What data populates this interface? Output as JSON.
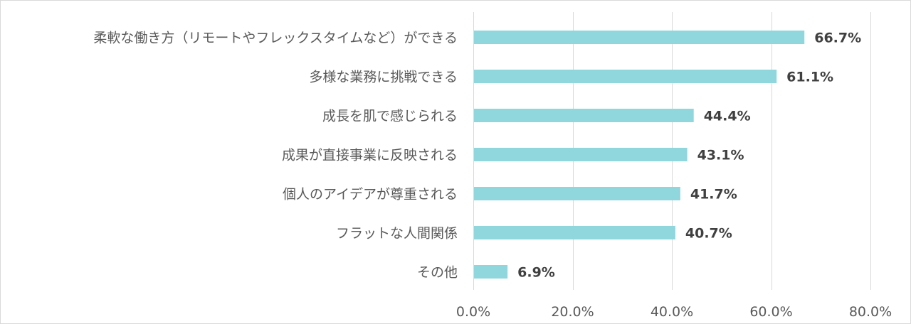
{
  "chart_data": {
    "type": "bar",
    "orientation": "horizontal",
    "categories": [
      "柔軟な働き方（リモートやフレックスタイムなど）ができる",
      "多様な業務に挑戦できる",
      "成長を肌で感じられる",
      "成果が直接事業に反映される",
      "個人のアイデアが尊重される",
      "フラットな人間関係",
      "その他"
    ],
    "values": [
      66.7,
      61.1,
      44.4,
      43.1,
      41.7,
      40.7,
      6.9
    ],
    "value_labels": [
      "66.7%",
      "61.1%",
      "44.4%",
      "43.1%",
      "41.7%",
      "40.7%",
      "6.9%"
    ],
    "xlim": [
      0,
      80
    ],
    "x_ticks": [
      0,
      20,
      40,
      60,
      80
    ],
    "x_tick_labels": [
      "0.0%",
      "20.0%",
      "40.0%",
      "60.0%",
      "80.0%"
    ],
    "grid": true,
    "legend": "none",
    "bar_color": "#8fd6dd"
  }
}
